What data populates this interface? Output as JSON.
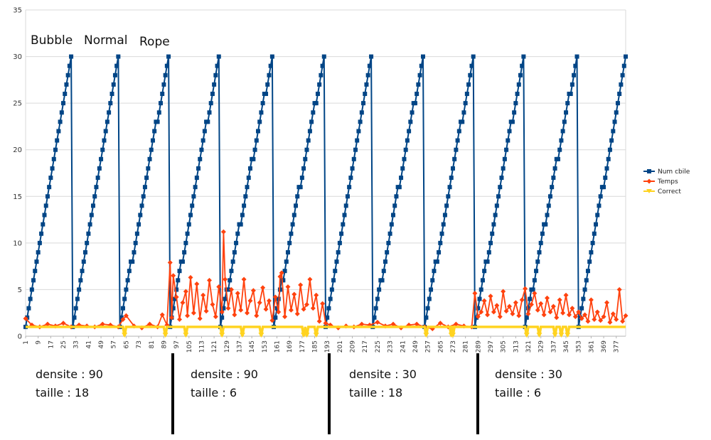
{
  "chart_data": {
    "type": "line",
    "title": "",
    "xlabel": "",
    "ylabel": "",
    "ylim": [
      0,
      35
    ],
    "yticks": [
      0,
      5,
      10,
      15,
      20,
      25,
      30,
      35
    ],
    "xlim": [
      1,
      383
    ],
    "xticks": [
      1,
      9,
      17,
      25,
      33,
      41,
      49,
      57,
      65,
      73,
      81,
      89,
      97,
      105,
      113,
      121,
      129,
      137,
      145,
      153,
      161,
      169,
      177,
      185,
      193,
      201,
      209,
      217,
      225,
      233,
      241,
      249,
      257,
      265,
      273,
      281,
      289,
      297,
      305,
      313,
      321,
      329,
      337,
      345,
      353,
      361,
      369,
      377
    ],
    "grid": true,
    "legend": "right",
    "series": [
      {
        "name": "Num cbile",
        "color": "#004586",
        "marker": "square",
        "segments": [
          {
            "x_start": 1,
            "x_end": 30
          },
          {
            "x_start": 31,
            "x_end": 60
          },
          {
            "x_start": 61,
            "x_end": 92
          },
          {
            "x_start": 93,
            "x_end": 124
          },
          {
            "x_start": 125,
            "x_end": 158
          },
          {
            "x_start": 159,
            "x_end": 191
          },
          {
            "x_start": 192,
            "x_end": 221
          },
          {
            "x_start": 222,
            "x_end": 254
          },
          {
            "x_start": 255,
            "x_end": 286
          },
          {
            "x_start": 287,
            "x_end": 318
          },
          {
            "x_start": 319,
            "x_end": 352
          },
          {
            "x_start": 353,
            "x_end": 383
          }
        ],
        "y_range": [
          1,
          30
        ]
      },
      {
        "name": "Temps",
        "color": "#ff420e",
        "marker": "diamond",
        "x": [
          1,
          5,
          10,
          15,
          20,
          25,
          30,
          35,
          40,
          45,
          50,
          55,
          60,
          63,
          65,
          70,
          75,
          80,
          85,
          88,
          91,
          93,
          94,
          95,
          97,
          99,
          101,
          103,
          104,
          106,
          108,
          110,
          112,
          114,
          116,
          118,
          120,
          122,
          124,
          126,
          127,
          128,
          130,
          132,
          134,
          136,
          138,
          140,
          142,
          144,
          146,
          148,
          150,
          152,
          154,
          156,
          158,
          160,
          162,
          163,
          164,
          166,
          168,
          170,
          172,
          174,
          176,
          178,
          180,
          182,
          184,
          186,
          188,
          190,
          192,
          195,
          200,
          205,
          210,
          215,
          220,
          225,
          230,
          235,
          240,
          245,
          250,
          255,
          260,
          265,
          270,
          275,
          280,
          285,
          287,
          289,
          291,
          293,
          295,
          297,
          299,
          301,
          303,
          305,
          307,
          309,
          311,
          313,
          315,
          317,
          319,
          321,
          323,
          325,
          327,
          329,
          331,
          333,
          335,
          337,
          339,
          341,
          343,
          345,
          347,
          349,
          351,
          353,
          355,
          357,
          359,
          361,
          363,
          365,
          367,
          369,
          371,
          373,
          375,
          377,
          379,
          381,
          383
        ],
        "y": [
          1.9,
          1.2,
          1.0,
          1.3,
          1.1,
          1.4,
          1.0,
          1.2,
          1.1,
          1.0,
          1.3,
          1.2,
          1.0,
          1.8,
          2.2,
          1.1,
          0.9,
          1.3,
          1.0,
          2.3,
          1.2,
          7.9,
          2.0,
          6.5,
          4.2,
          1.8,
          3.6,
          4.8,
          2.2,
          6.3,
          2.5,
          5.6,
          1.9,
          4.4,
          2.7,
          6.0,
          3.4,
          2.1,
          5.3,
          2.6,
          11.2,
          6.1,
          3.0,
          5.0,
          2.3,
          4.6,
          2.8,
          6.1,
          2.5,
          3.8,
          4.9,
          2.2,
          3.6,
          5.2,
          2.9,
          3.8,
          1.7,
          4.2,
          2.6,
          6.4,
          6.8,
          2.1,
          5.3,
          2.8,
          4.5,
          2.4,
          5.5,
          2.9,
          3.4,
          6.1,
          3.0,
          4.4,
          1.6,
          3.5,
          1.4,
          1.2,
          0.9,
          1.1,
          1.0,
          1.3,
          1.2,
          1.5,
          1.1,
          1.3,
          0.9,
          1.2,
          1.3,
          1.0,
          0.8,
          1.4,
          1.0,
          1.3,
          1.1,
          1.0,
          4.6,
          2.1,
          2.6,
          3.8,
          2.3,
          4.3,
          2.6,
          3.3,
          2.1,
          4.8,
          2.7,
          3.2,
          2.4,
          3.6,
          2.2,
          3.9,
          5.1,
          2.4,
          3.4,
          4.6,
          2.8,
          3.5,
          2.3,
          4.1,
          2.6,
          3.2,
          2.0,
          3.9,
          2.5,
          4.4,
          2.3,
          3.0,
          2.1,
          2.6,
          1.9,
          2.3,
          1.6,
          3.9,
          1.8,
          2.6,
          1.7,
          2.1,
          3.6,
          1.5,
          2.4,
          1.8,
          5.0,
          1.6,
          2.2
        ]
      },
      {
        "name": "Correct",
        "color": "#ffd320",
        "marker": "triangle-down",
        "baseline": 1,
        "dips_x": [
          64,
          90,
          103,
          126,
          139,
          151,
          178,
          180,
          186,
          256,
          272,
          273,
          320,
          328,
          338,
          342,
          346
        ]
      }
    ],
    "annotations_top": [
      {
        "text": "Bubble",
        "x": 15
      },
      {
        "text": "Normal",
        "x": 45
      },
      {
        "text": "Rope",
        "x": 78
      }
    ],
    "sections": [
      {
        "line1": "densite : 90",
        "line2": "taille : 18"
      },
      {
        "line1": "densite : 90",
        "line2": "taille : 6"
      },
      {
        "line1": "densite : 30",
        "line2": "taille : 18"
      },
      {
        "line1": "densite : 30",
        "line2": "taille : 6"
      }
    ],
    "divider_x": [
      93,
      192,
      287
    ]
  }
}
